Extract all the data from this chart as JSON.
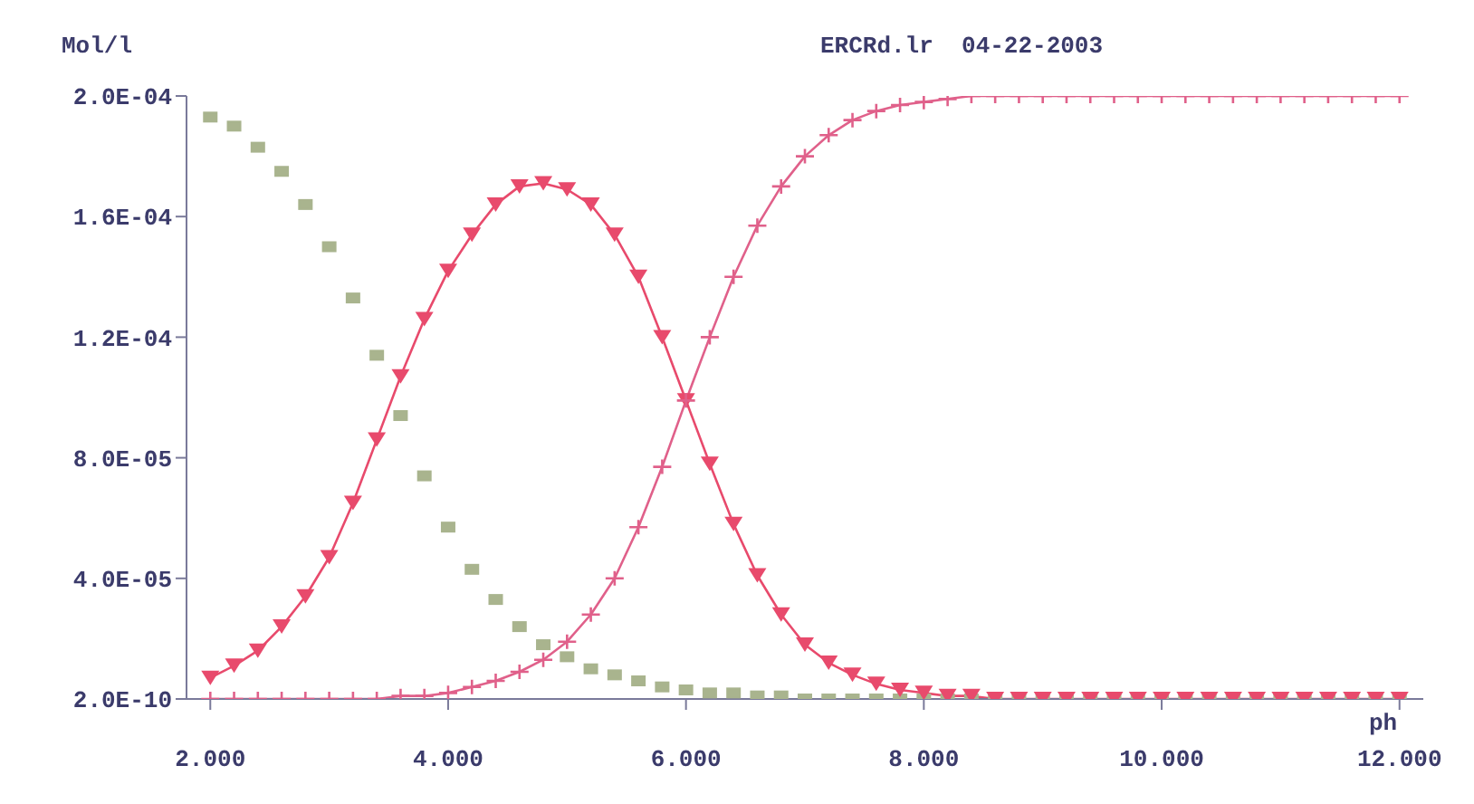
{
  "chart_data": {
    "type": "line",
    "title": "ERCRd.lr  04-22-2003",
    "xlabel": "ph",
    "ylabel": "Mol/l",
    "x": [
      2.0,
      2.2,
      2.4,
      2.6,
      2.8,
      3.0,
      3.2,
      3.4,
      3.6,
      3.8,
      4.0,
      4.2,
      4.4,
      4.6,
      4.8,
      5.0,
      5.2,
      5.4,
      5.6,
      5.8,
      6.0,
      6.2,
      6.4,
      6.6,
      6.8,
      7.0,
      7.2,
      7.4,
      7.6,
      7.8,
      8.0,
      8.2,
      8.4,
      8.6,
      8.8,
      9.0,
      9.2,
      9.4,
      9.6,
      9.8,
      10.0,
      10.2,
      10.4,
      10.6,
      10.8,
      11.0,
      11.2,
      11.4,
      11.6,
      11.8,
      12.0
    ],
    "series": [
      {
        "type": "scatter",
        "marker": "square",
        "color": "#a9b48e",
        "values": [
          0.000193,
          0.00019,
          0.000183,
          0.000175,
          0.000164,
          0.00015,
          0.000133,
          0.000114,
          9.4e-05,
          7.4e-05,
          5.7e-05,
          4.3e-05,
          3.3e-05,
          2.4e-05,
          1.8e-05,
          1.4e-05,
          1e-05,
          8e-06,
          6e-06,
          4e-06,
          3e-06,
          2e-06,
          2e-06,
          1e-06,
          1e-06,
          0,
          0,
          0,
          0,
          0,
          0,
          0,
          0,
          0,
          0,
          0,
          0,
          0,
          0,
          0,
          0,
          0,
          0,
          0,
          0,
          0,
          0,
          0,
          0,
          0,
          0
        ]
      },
      {
        "marker": "triangle",
        "line_style": "solid",
        "color": "#e84a6c",
        "values": [
          7e-06,
          1.1e-05,
          1.6e-05,
          2.4e-05,
          3.4e-05,
          4.7e-05,
          6.5e-05,
          8.6e-05,
          0.000107,
          0.000126,
          0.000142,
          0.000154,
          0.000164,
          0.00017,
          0.000171,
          0.000169,
          0.000164,
          0.000154,
          0.00014,
          0.00012,
          9.9e-05,
          7.8e-05,
          5.8e-05,
          4.1e-05,
          2.8e-05,
          1.8e-05,
          1.2e-05,
          8e-06,
          5e-06,
          3e-06,
          2e-06,
          1e-06,
          1e-06,
          0,
          0,
          0,
          0,
          0,
          0,
          0,
          0,
          0,
          0,
          0,
          0,
          0,
          0,
          0,
          0,
          0,
          0
        ]
      },
      {
        "marker": "cross",
        "line_style": "solid",
        "color": "#e0608a",
        "values": [
          0,
          0,
          0,
          0,
          0,
          0,
          0,
          0,
          1e-06,
          1e-06,
          2e-06,
          4e-06,
          6e-06,
          9e-06,
          1.3e-05,
          1.9e-05,
          2.8e-05,
          4e-05,
          5.7e-05,
          7.7e-05,
          9.9e-05,
          0.00012,
          0.00014,
          0.000157,
          0.00017,
          0.00018,
          0.000187,
          0.000192,
          0.000195,
          0.000197,
          0.000198,
          0.000199,
          0.0002,
          0.0002,
          0.0002,
          0.0002,
          0.0002,
          0.0002,
          0.0002,
          0.0002,
          0.0002,
          0.0002,
          0.0002,
          0.0002,
          0.0002,
          0.0002,
          0.0002,
          0.0002,
          0.0002,
          0.0002,
          0.0002
        ]
      }
    ],
    "xlim": [
      1.8,
      12.2
    ],
    "xticks": [
      {
        "value": 2,
        "label": "2.000"
      },
      {
        "value": 4,
        "label": "4.000"
      },
      {
        "value": 6,
        "label": "6.000"
      },
      {
        "value": 8,
        "label": "8.000"
      },
      {
        "value": 10,
        "label": "10.000"
      },
      {
        "value": 12,
        "label": "12.000"
      }
    ],
    "ylim": [
      0,
      0.0002
    ],
    "yticks": [
      {
        "value": 2e-10,
        "label": "2.0E-10"
      },
      {
        "value": 4e-05,
        "label": "4.0E-05"
      },
      {
        "value": 8e-05,
        "label": "8.0E-05"
      },
      {
        "value": 0.00012,
        "label": "1.2E-04"
      },
      {
        "value": 0.00016,
        "label": "1.6E-04"
      },
      {
        "value": 0.0002,
        "label": "2.0E-04"
      }
    ],
    "grid": false,
    "legend": false
  }
}
